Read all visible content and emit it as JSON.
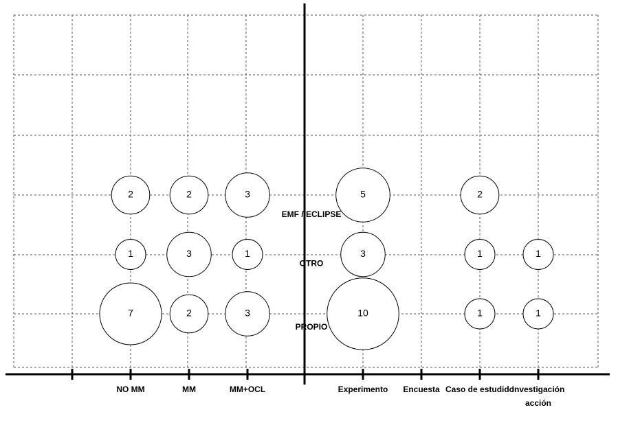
{
  "chart_data": {
    "type": "bubble",
    "categories": [
      null,
      "NO MM",
      "MM",
      "MM+OCL",
      "Experimento",
      "Encuesta",
      "Caso de estudido",
      "Investigación acción"
    ],
    "rows": [
      "EMF / ECLIPSE",
      "OTRO",
      "PROPIO"
    ],
    "values": [
      [
        null,
        2,
        2,
        3,
        5,
        null,
        2,
        null
      ],
      [
        null,
        1,
        3,
        1,
        3,
        null,
        1,
        1
      ],
      [
        null,
        7,
        2,
        3,
        10,
        null,
        1,
        1
      ]
    ],
    "grid": true
  }
}
